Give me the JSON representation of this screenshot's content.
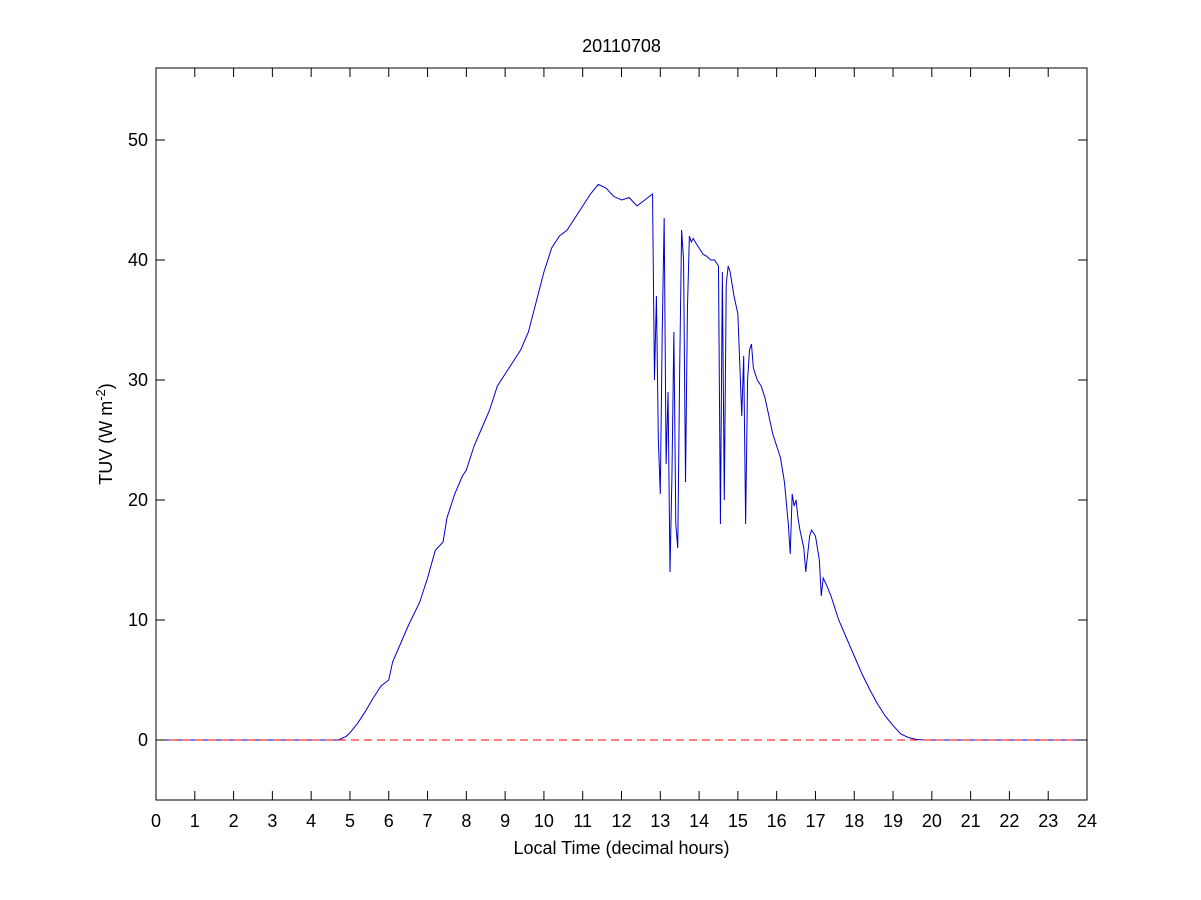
{
  "chart_data": {
    "type": "line",
    "title": "20110708",
    "xlabel": "Local Time (decimal hours)",
    "ylabel_main": "TUV (W m",
    "ylabel_exponent": "-2",
    "ylabel_close": ")",
    "xlim": [
      0,
      24
    ],
    "ylim": [
      -5,
      56
    ],
    "x_ticks": [
      0,
      1,
      2,
      3,
      4,
      5,
      6,
      7,
      8,
      9,
      10,
      11,
      12,
      13,
      14,
      15,
      16,
      17,
      18,
      19,
      20,
      21,
      22,
      23,
      24
    ],
    "x_tick_labels": [
      "0",
      "1",
      "2",
      "3",
      "4",
      "5",
      "6",
      "7",
      "8",
      "9",
      "10",
      "11",
      "12",
      "13",
      "14",
      "15",
      "16",
      "17",
      "18",
      "19",
      "20",
      "21",
      "22",
      "23",
      "24"
    ],
    "y_ticks": [
      0,
      10,
      20,
      30,
      40,
      50
    ],
    "y_tick_labels": [
      "0",
      "10",
      "20",
      "30",
      "40",
      "50"
    ],
    "grid": false,
    "legend": "none",
    "series": [
      {
        "color": "#0000cc",
        "style": "solid",
        "x": [
          0,
          4.5,
          4.7,
          4.9,
          5.0,
          5.2,
          5.4,
          5.6,
          5.8,
          6.0,
          6.1,
          6.3,
          6.5,
          6.8,
          7.0,
          7.2,
          7.4,
          7.5,
          7.7,
          7.9,
          8.0,
          8.2,
          8.4,
          8.6,
          8.8,
          9.0,
          9.2,
          9.4,
          9.6,
          9.8,
          10.0,
          10.2,
          10.4,
          10.6,
          10.8,
          11.0,
          11.2,
          11.4,
          11.6,
          11.8,
          12.0,
          12.2,
          12.4,
          12.6,
          12.8,
          12.85,
          12.9,
          12.95,
          13.0,
          13.05,
          13.1,
          13.15,
          13.2,
          13.25,
          13.3,
          13.35,
          13.4,
          13.45,
          13.5,
          13.55,
          13.6,
          13.65,
          13.7,
          13.75,
          13.8,
          13.85,
          13.9,
          14.0,
          14.1,
          14.2,
          14.3,
          14.4,
          14.5,
          14.55,
          14.6,
          14.65,
          14.7,
          14.75,
          14.8,
          14.9,
          15.0,
          15.1,
          15.15,
          15.2,
          15.25,
          15.3,
          15.35,
          15.4,
          15.5,
          15.6,
          15.7,
          15.8,
          15.9,
          16.0,
          16.1,
          16.2,
          16.3,
          16.35,
          16.4,
          16.45,
          16.5,
          16.55,
          16.6,
          16.7,
          16.75,
          16.8,
          16.85,
          16.9,
          17.0,
          17.1,
          17.15,
          17.2,
          17.3,
          17.4,
          17.5,
          17.6,
          17.8,
          18.0,
          18.2,
          18.4,
          18.6,
          18.8,
          19.0,
          19.2,
          19.4,
          19.6,
          19.8,
          20.0,
          20.2,
          24
        ],
        "y": [
          0,
          0,
          0,
          0.3,
          0.6,
          1.4,
          2.4,
          3.5,
          4.5,
          5.0,
          6.5,
          8.0,
          9.5,
          11.5,
          13.5,
          15.8,
          16.5,
          18.5,
          20.5,
          22.0,
          22.5,
          24.5,
          26.0,
          27.5,
          29.5,
          30.5,
          31.5,
          32.5,
          34.0,
          36.5,
          39.0,
          41.0,
          42.0,
          42.5,
          43.5,
          44.5,
          45.5,
          46.3,
          46.0,
          45.3,
          45.0,
          45.2,
          44.5,
          45.0,
          45.5,
          30.0,
          37.0,
          25.0,
          20.5,
          34.0,
          43.5,
          23.0,
          29.0,
          14.0,
          22.0,
          34.0,
          18.0,
          16.0,
          31.0,
          42.5,
          40.0,
          21.5,
          36.0,
          42.0,
          41.5,
          41.8,
          41.5,
          41.0,
          40.5,
          40.3,
          40.0,
          40.0,
          39.5,
          18.0,
          39.0,
          20.0,
          38.0,
          39.5,
          39.0,
          37.0,
          35.5,
          27.0,
          32.0,
          18.0,
          30.0,
          32.5,
          33.0,
          31.0,
          30.0,
          29.5,
          28.5,
          27.0,
          25.5,
          24.5,
          23.5,
          21.5,
          18.0,
          15.5,
          20.5,
          19.5,
          20.0,
          18.5,
          17.5,
          16.0,
          14.0,
          15.5,
          17.0,
          17.5,
          17.0,
          15.0,
          12.0,
          13.5,
          12.8,
          12.0,
          11.0,
          10.0,
          8.5,
          7.0,
          5.5,
          4.2,
          3.0,
          2.0,
          1.2,
          0.5,
          0.2,
          0.05,
          0,
          0,
          0,
          0
        ]
      },
      {
        "color": "#ff0000",
        "style": "dashed",
        "x": [
          0,
          24
        ],
        "y": [
          0,
          0
        ]
      }
    ]
  }
}
